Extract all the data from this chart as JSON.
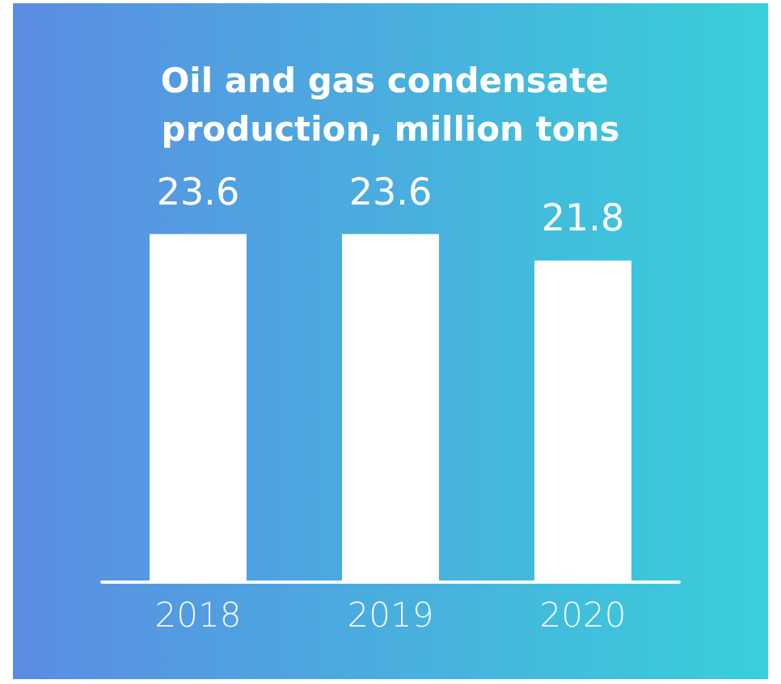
{
  "chart_data": {
    "type": "bar",
    "title": "Oil and gas condensate production, million tons",
    "categories": [
      "2018",
      "2019",
      "2020"
    ],
    "values": [
      23.6,
      23.6,
      21.8
    ],
    "color": "#ffffff",
    "data_labels": true
  }
}
